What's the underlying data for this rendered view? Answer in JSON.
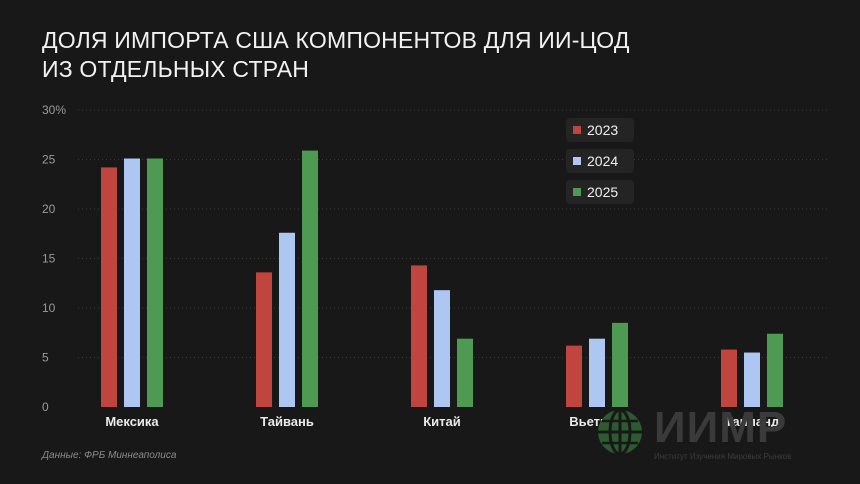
{
  "header": {
    "title_line1": "ДОЛЯ ИМПОРТА США КОМПОНЕНТОВ ДЛЯ ИИ-ЦОД",
    "title_line2": "ИЗ ОТДЕЛЬНЫХ СТРАН"
  },
  "footer": {
    "source": "Данные: ФРБ Миннеаполиса"
  },
  "logo": {
    "word": "ИИМР",
    "subtitle": "Институт Изучения Мировых Рынков"
  },
  "chart_data": {
    "type": "bar",
    "title": "ДОЛЯ ИМПОРТА США КОМПОНЕНТОВ ДЛЯ ИИ-ЦОД ИЗ ОТДЕЛЬНЫХ СТРАН",
    "categories": [
      "Мексика",
      "Тайвань",
      "Китай",
      "Вьетнам",
      "Таиланд"
    ],
    "series": [
      {
        "name": "2023",
        "color": "#c0453e",
        "values": [
          24.2,
          13.6,
          14.3,
          6.2,
          5.8
        ]
      },
      {
        "name": "2024",
        "color": "#aec7f2",
        "values": [
          25.1,
          17.6,
          11.8,
          6.9,
          5.5
        ]
      },
      {
        "name": "2025",
        "color": "#4f9a52",
        "values": [
          25.1,
          25.9,
          6.9,
          8.5,
          7.4
        ]
      }
    ],
    "ylim": [
      0,
      30
    ],
    "yticks": [
      0,
      5,
      10,
      15,
      20,
      25,
      30
    ],
    "ytick_labels": [
      "0",
      "5",
      "10",
      "15",
      "20",
      "25",
      "30%"
    ],
    "xlabel": "",
    "ylabel": "",
    "grid": "horizontal-dotted",
    "legend_position": "top-right"
  }
}
